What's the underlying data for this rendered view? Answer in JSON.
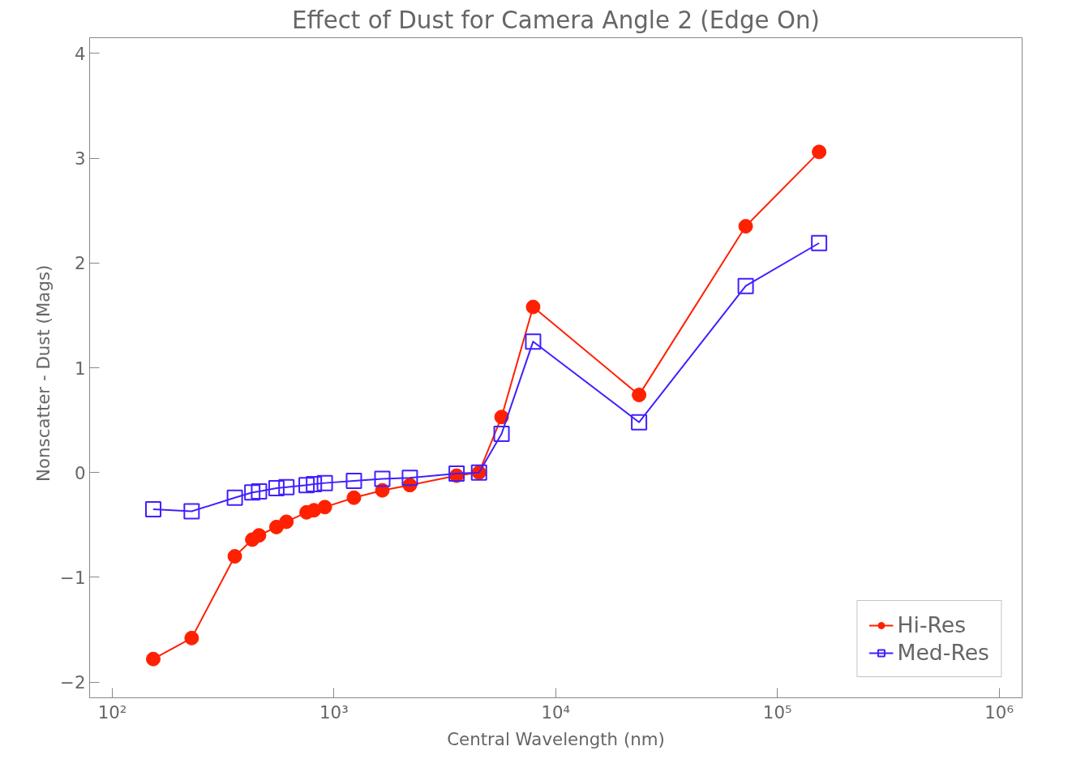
{
  "chart_data": {
    "type": "line",
    "title": "Effect of Dust for Camera Angle 2 (Edge On)",
    "xlabel": "Central Wavelength (nm)",
    "ylabel": "Nonscatter  -  Dust (Mags)",
    "x": [
      153,
      228,
      357,
      428,
      459,
      550,
      610,
      752,
      812,
      909,
      1230,
      1652,
      2198,
      3573,
      4510,
      5700,
      7910,
      23770,
      71940,
      154200
    ],
    "series": [
      {
        "name": "Hi-Res",
        "color": "#ff2000",
        "marker": "circle",
        "values": [
          -1.78,
          -1.58,
          -0.8,
          -0.64,
          -0.6,
          -0.52,
          -0.47,
          -0.38,
          -0.36,
          -0.33,
          -0.24,
          -0.17,
          -0.12,
          -0.03,
          0.0,
          0.53,
          1.58,
          0.74,
          2.35,
          3.06
        ]
      },
      {
        "name": "Med-Res",
        "color": "#4020ff",
        "marker": "square",
        "values": [
          -0.35,
          -0.37,
          -0.24,
          -0.19,
          -0.18,
          -0.15,
          -0.14,
          -0.12,
          -0.11,
          -0.1,
          -0.08,
          -0.06,
          -0.05,
          -0.01,
          0.0,
          0.37,
          1.25,
          0.48,
          1.78,
          2.19
        ]
      }
    ],
    "log": "x",
    "xlim": [
      79,
      1270000
    ],
    "ylim": [
      -2.15,
      4.15
    ],
    "xticks": [
      {
        "value": 100,
        "label": "10²"
      },
      {
        "value": 1000,
        "label": "10³"
      },
      {
        "value": 10000,
        "label": "10⁴"
      },
      {
        "value": 100000,
        "label": "10⁵"
      },
      {
        "value": 1000000,
        "label": "10⁶"
      }
    ],
    "yticks": [
      -2,
      -1,
      0,
      1,
      2,
      3,
      4
    ],
    "grid": false,
    "legend": "bottom right",
    "line_style": "solid"
  }
}
